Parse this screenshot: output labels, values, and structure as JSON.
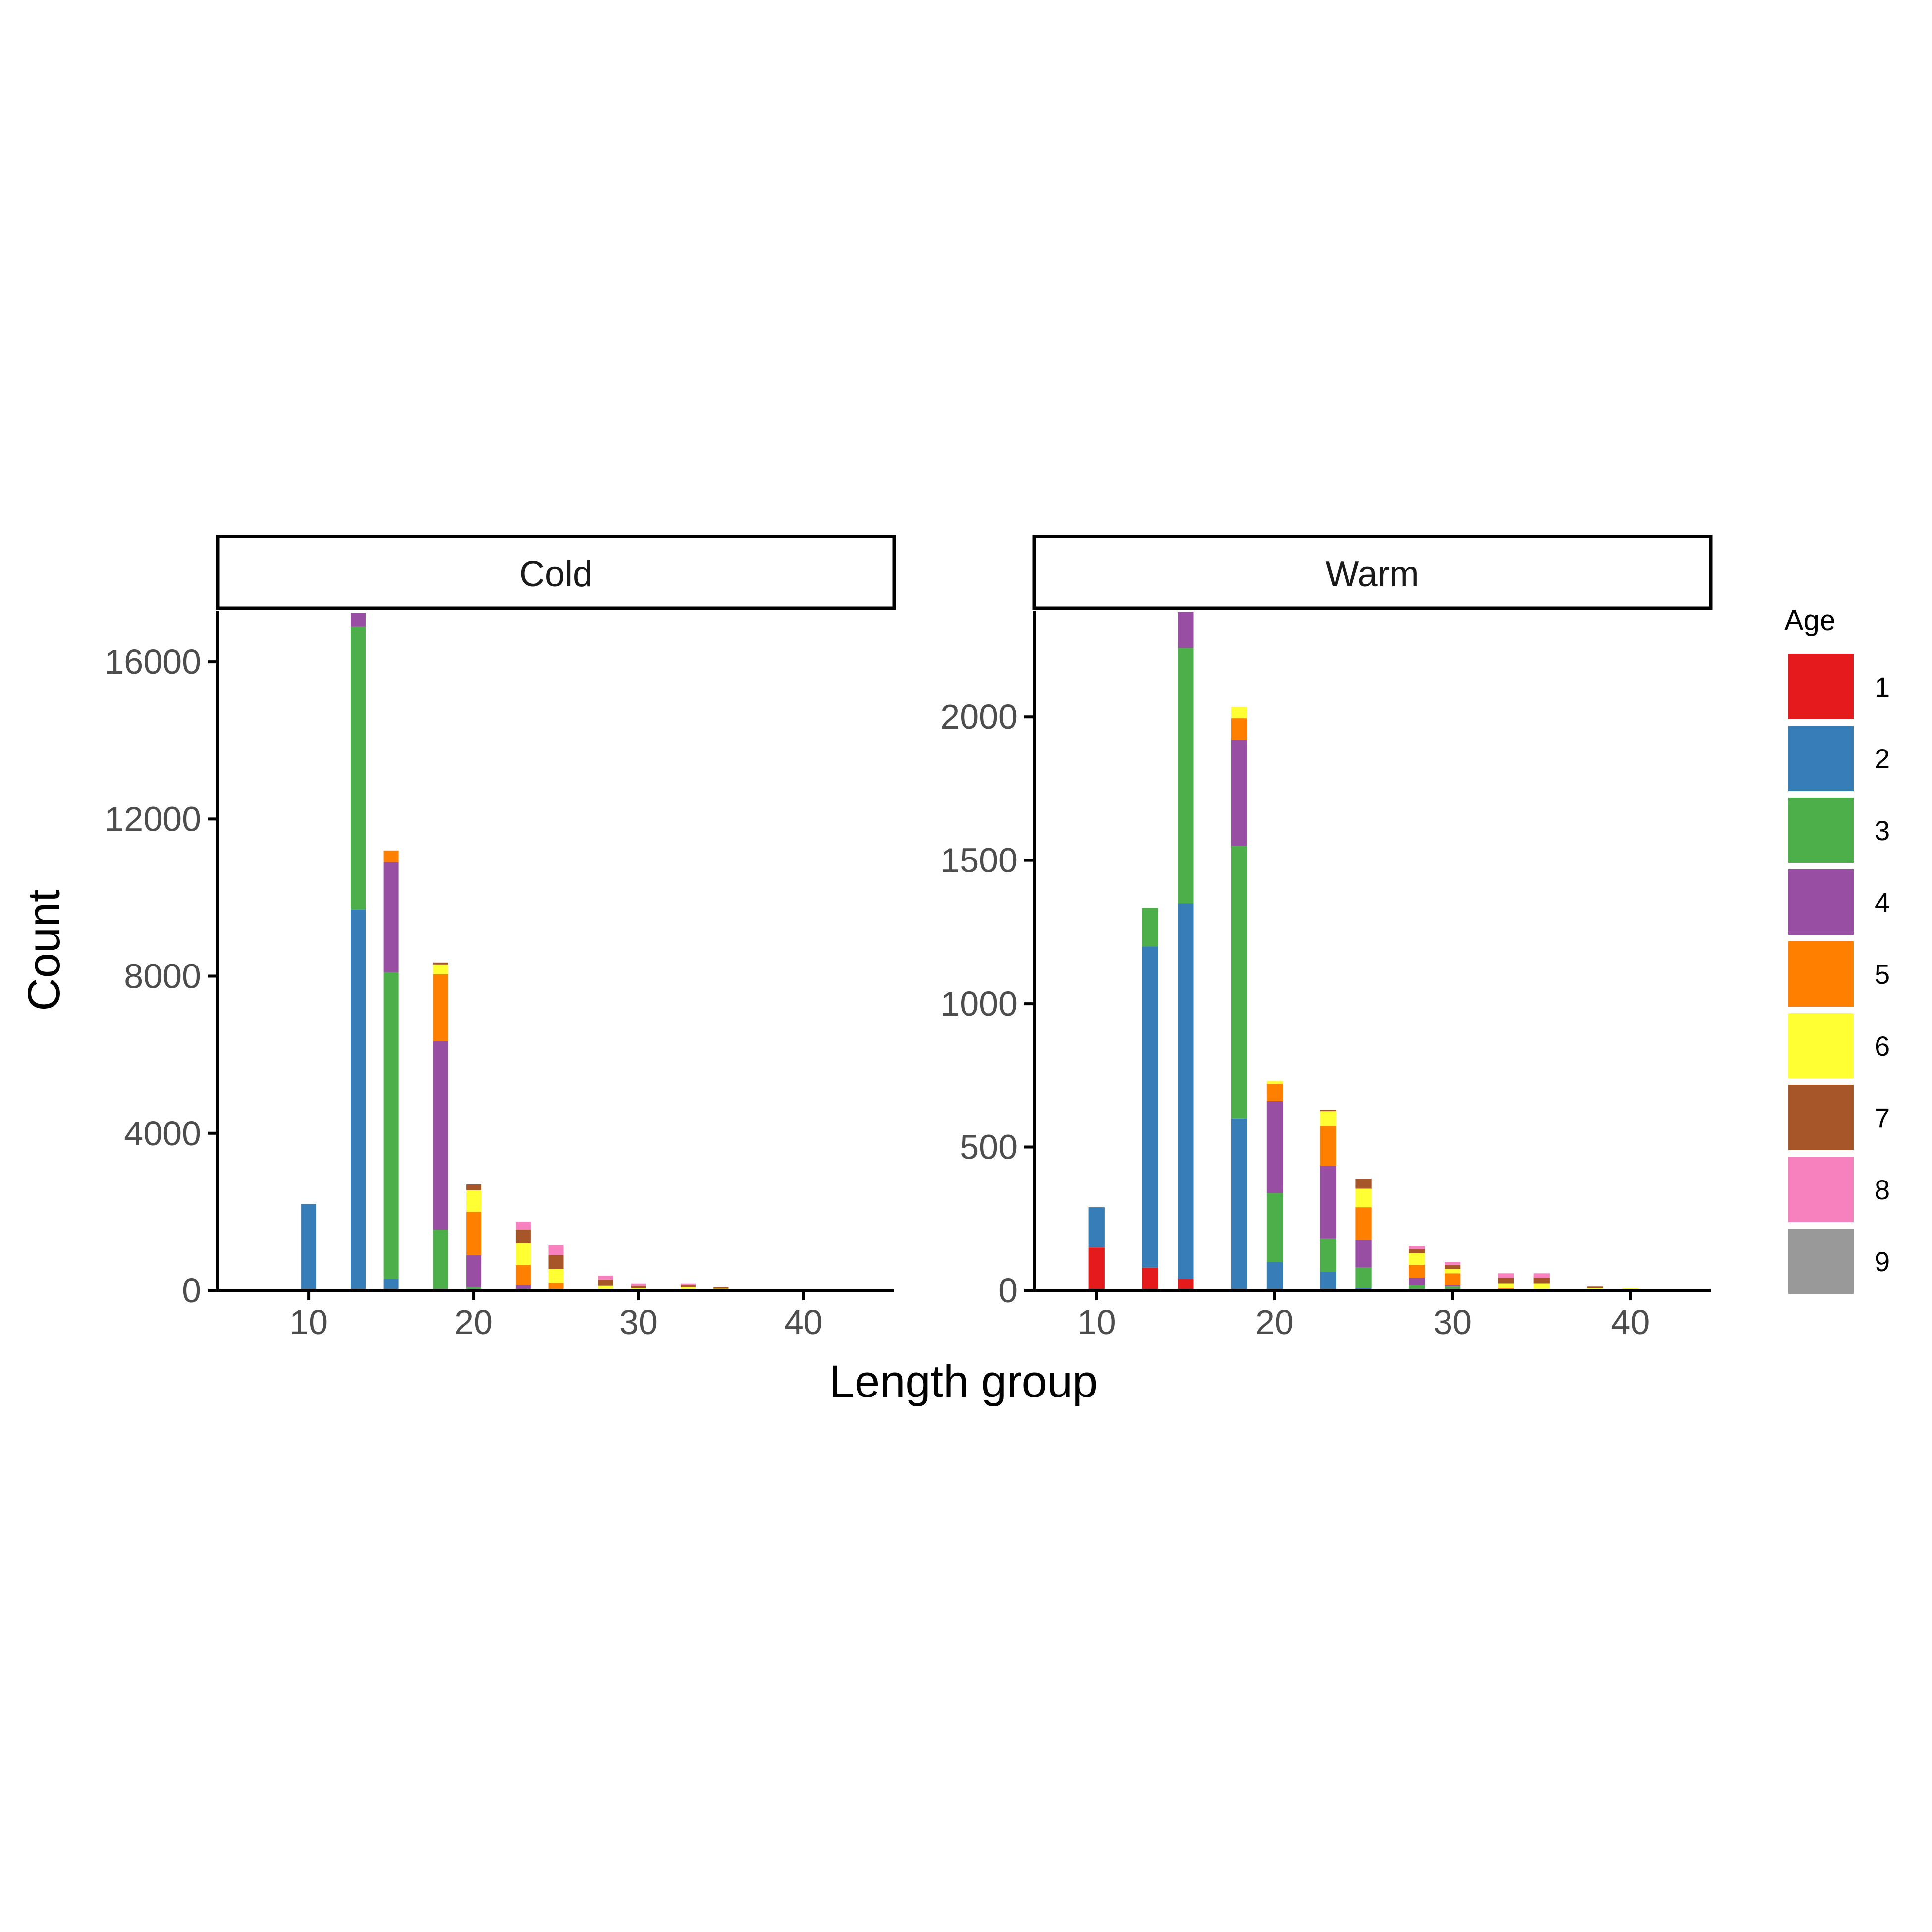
{
  "chart_data": {
    "type": "bar",
    "stacked": true,
    "xlabel": "Length group",
    "ylabel": "Count",
    "legend": {
      "title": "Age",
      "position": "right",
      "entries": [
        "1",
        "2",
        "3",
        "4",
        "5",
        "6",
        "7",
        "8",
        "9"
      ],
      "colors": [
        "#E41A1C",
        "#377EB8",
        "#4DAF4A",
        "#984EA3",
        "#FF7F00",
        "#FFFF33",
        "#A65628",
        "#F781BF",
        "#999999"
      ]
    },
    "grid": false,
    "panels": [
      {
        "title": "Cold",
        "xlim": [
          4.5,
          45.5
        ],
        "ylim": [
          0,
          17300
        ],
        "xticks": [
          10,
          20,
          30,
          40
        ],
        "yticks": [
          0,
          4000,
          8000,
          12000,
          16000
        ],
        "x": [
          10,
          13,
          15,
          18,
          20,
          23,
          25,
          28,
          30,
          33,
          35
        ],
        "series": [
          {
            "name": "1",
            "values": [
              0,
              0,
              0,
              0,
              0,
              0,
              0,
              0,
              0,
              0,
              0
            ]
          },
          {
            "name": "2",
            "values": [
              2200,
              9700,
              300,
              0,
              0,
              0,
              0,
              0,
              0,
              0,
              0
            ]
          },
          {
            "name": "3",
            "values": [
              0,
              7200,
              7800,
              1550,
              100,
              0,
              0,
              0,
              0,
              0,
              0
            ]
          },
          {
            "name": "4",
            "values": [
              0,
              350,
              2800,
              4800,
              800,
              150,
              0,
              0,
              0,
              0,
              0
            ]
          },
          {
            "name": "5",
            "values": [
              0,
              0,
              300,
              1700,
              1100,
              500,
              200,
              30,
              40,
              40,
              60
            ]
          },
          {
            "name": "6",
            "values": [
              0,
              0,
              0,
              250,
              550,
              550,
              350,
              100,
              30,
              50,
              10
            ]
          },
          {
            "name": "7",
            "values": [
              0,
              0,
              0,
              50,
              150,
              350,
              350,
              150,
              60,
              60,
              20
            ]
          },
          {
            "name": "8",
            "values": [
              0,
              0,
              0,
              0,
              0,
              200,
              250,
              100,
              50,
              30,
              0
            ]
          },
          {
            "name": "9",
            "values": [
              0,
              0,
              0,
              0,
              0,
              0,
              0,
              0,
              0,
              0,
              0
            ]
          }
        ]
      },
      {
        "title": "Warm",
        "xlim": [
          6.5,
          44.5
        ],
        "ylim": [
          0,
          2370
        ],
        "xticks": [
          10,
          20,
          30,
          40
        ],
        "yticks": [
          0,
          500,
          1000,
          1500,
          2000
        ],
        "x": [
          10,
          13,
          15,
          18,
          20,
          23,
          25,
          28,
          30,
          33,
          35,
          38,
          40
        ],
        "series": [
          {
            "name": "1",
            "values": [
              150,
              80,
              40,
              0,
              0,
              0,
              0,
              0,
              0,
              0,
              0,
              0,
              0
            ]
          },
          {
            "name": "2",
            "values": [
              140,
              1120,
              1310,
              600,
              100,
              65,
              10,
              0,
              0,
              0,
              0,
              0,
              0
            ]
          },
          {
            "name": "3",
            "values": [
              0,
              135,
              890,
              950,
              240,
              115,
              70,
              20,
              15,
              5,
              0,
              0,
              0
            ]
          },
          {
            "name": "4",
            "values": [
              0,
              0,
              125,
              370,
              320,
              255,
              95,
              25,
              5,
              0,
              0,
              0,
              0
            ]
          },
          {
            "name": "5",
            "values": [
              0,
              0,
              0,
              75,
              60,
              140,
              115,
              45,
              40,
              5,
              5,
              5,
              5
            ]
          },
          {
            "name": "6",
            "values": [
              0,
              0,
              0,
              40,
              10,
              50,
              65,
              40,
              15,
              15,
              20,
              5,
              5
            ]
          },
          {
            "name": "7",
            "values": [
              0,
              0,
              0,
              0,
              0,
              5,
              35,
              15,
              15,
              20,
              20,
              5,
              0
            ]
          },
          {
            "name": "8",
            "values": [
              0,
              0,
              0,
              0,
              0,
              0,
              0,
              10,
              10,
              15,
              15,
              0,
              0
            ]
          },
          {
            "name": "9",
            "values": [
              0,
              0,
              0,
              0,
              0,
              0,
              0,
              0,
              0,
              0,
              0,
              0,
              0
            ]
          }
        ]
      }
    ]
  }
}
